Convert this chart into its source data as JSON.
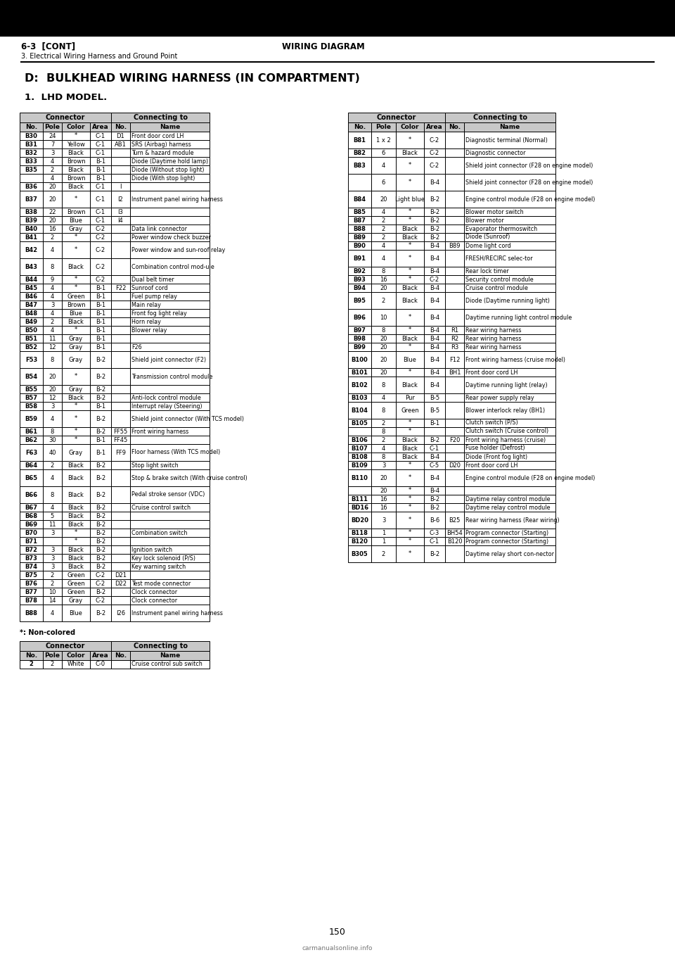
{
  "page_header_left": "6-3  [CONT]",
  "page_header_center": "WIRING DIAGRAM",
  "page_header_sub": "3. Electrical Wiring Harness and Ground Point",
  "section_title": "D:  BULKHEAD WIRING HARNESS (IN COMPARTMENT)",
  "subsection_title": "1.  LHD MODEL.",
  "page_number": "150",
  "watermark": "carmanualsonline.info",
  "left_col_headers": [
    "No.",
    "Pole",
    "Color",
    "Area",
    "No.",
    "Name"
  ],
  "left_rows": [
    [
      "B30",
      "24",
      "*",
      "C-1",
      "D1",
      "Front door cord LH",
      1
    ],
    [
      "B31",
      "7",
      "Yellow",
      "C-1",
      "AB1",
      "SRS (Airbag) harness",
      1
    ],
    [
      "B32",
      "3",
      "Black",
      "C-1",
      "",
      "Turn & hazard module",
      1
    ],
    [
      "B33",
      "4",
      "Brown",
      "B-1",
      "",
      "Diode (Daytime hold lamp)",
      1
    ],
    [
      "B35",
      "2",
      "Black",
      "B-1",
      "",
      "Diode (Without stop light)",
      1
    ],
    [
      "",
      "4",
      "Brown",
      "B-1",
      "",
      "Diode (With stop light)",
      1
    ],
    [
      "B36",
      "20",
      "Black",
      "C-1",
      "I",
      "",
      1
    ],
    [
      "B37",
      "20",
      "*",
      "C-1",
      "I2",
      "Instrument panel wiring harness",
      2
    ],
    [
      "B38",
      "22",
      "Brown",
      "C-1",
      "I3",
      "",
      1
    ],
    [
      "B39",
      "20",
      "Blue",
      "C-1",
      "I4",
      "",
      1
    ],
    [
      "B40",
      "16",
      "Gray",
      "C-2",
      "",
      "Data link connector",
      1
    ],
    [
      "B41",
      "2",
      "*",
      "C-2",
      "",
      "Power window check buzzer",
      1
    ],
    [
      "B42",
      "4",
      "*",
      "C-2",
      "",
      "Power window and sun-roof relay",
      2
    ],
    [
      "B43",
      "8",
      "Black",
      "C-2",
      "",
      "Combination control mod-ule",
      2
    ],
    [
      "B44",
      "9",
      "*",
      "C-2",
      "",
      "Dual belt timer",
      1
    ],
    [
      "B45",
      "4",
      "*",
      "B-1",
      "F22",
      "Sunroof cord",
      1
    ],
    [
      "B46",
      "4",
      "Green",
      "B-1",
      "",
      "Fuel pump relay",
      1
    ],
    [
      "B47",
      "3",
      "Brown",
      "B-1",
      "",
      "Main relay",
      1
    ],
    [
      "B48",
      "4",
      "Blue",
      "B-1",
      "",
      "Front fog light relay",
      1
    ],
    [
      "B49",
      "2",
      "Black",
      "B-1",
      "",
      "Horn relay",
      1
    ],
    [
      "B50",
      "4",
      "*",
      "B-1",
      "",
      "Blower relay",
      1
    ],
    [
      "B51",
      "11",
      "Gray",
      "B-1",
      "",
      "",
      1
    ],
    [
      "B52",
      "12",
      "Gray",
      "B-1",
      "",
      "F26",
      1
    ],
    [
      "F53",
      "8",
      "Gray",
      "B-2",
      "",
      "Shield joint connector (F2)",
      2
    ],
    [
      "B54",
      "20",
      "*",
      "B-2",
      "",
      "Transmission control module",
      2
    ],
    [
      "B55",
      "20",
      "Gray",
      "B-2",
      "",
      "",
      1
    ],
    [
      "B57",
      "12",
      "Black",
      "B-2",
      "",
      "Anti-lock control module",
      1
    ],
    [
      "B58",
      "3",
      "*",
      "B-1",
      "",
      "Interrupt relay (Steering)",
      1
    ],
    [
      "B59",
      "4",
      "*",
      "B-2",
      "",
      "Shield joint connector (With TCS model)",
      2
    ],
    [
      "B61",
      "8",
      "*",
      "B-2",
      "FF55",
      "Front wiring harness",
      1
    ],
    [
      "B62",
      "30",
      "*",
      "B-1",
      "FF45",
      "",
      1
    ],
    [
      "F63",
      "40",
      "Gray",
      "B-1",
      "FF9",
      "Floor harness (With TCS model)",
      2
    ],
    [
      "B64",
      "2",
      "Black",
      "B-2",
      "",
      "Stop light switch",
      1
    ],
    [
      "B65",
      "4",
      "Black",
      "B-2",
      "",
      "Stop & brake switch (With cruise control)",
      2
    ],
    [
      "B66",
      "8",
      "Black",
      "B-2",
      "",
      "Pedal stroke sensor (VDC)",
      2
    ],
    [
      "B67",
      "4",
      "Black",
      "B-2",
      "",
      "Cruise control switch",
      1
    ],
    [
      "B68",
      "5",
      "Black",
      "B-2",
      "",
      "",
      1
    ],
    [
      "B69",
      "11",
      "Black",
      "B-2",
      "",
      "",
      1
    ],
    [
      "B70",
      "3",
      "*",
      "B-2",
      "",
      "Combination switch",
      1
    ],
    [
      "B71",
      "",
      "*",
      "B-2",
      "",
      "",
      1
    ],
    [
      "B72",
      "3",
      "Black",
      "B-2",
      "",
      "Ignition switch",
      1
    ],
    [
      "B73",
      "3",
      "Black",
      "B-2",
      "",
      "Key lock solenoid (P/S)",
      1
    ],
    [
      "B74",
      "3",
      "Black",
      "B-2",
      "",
      "Key warning switch",
      1
    ],
    [
      "B75",
      "2",
      "Green",
      "C-2",
      "D21",
      "",
      1
    ],
    [
      "B76",
      "2",
      "Green",
      "C-2",
      "D22",
      "Test mode connector",
      1
    ],
    [
      "B77",
      "10",
      "Green",
      "B-2",
      "",
      "Clock connector",
      1
    ],
    [
      "B78",
      "14",
      "Gray",
      "C-2",
      "",
      "Clock connector",
      1
    ],
    [
      "B88",
      "4",
      "Blue",
      "B-2",
      "I26",
      "Instrument panel wiring harness",
      2
    ]
  ],
  "right_col_headers": [
    "No.",
    "Pole",
    "Color",
    "Area",
    "No.",
    "Name"
  ],
  "right_rows": [
    [
      "B81",
      "1 x 2",
      "*",
      "C-2",
      "",
      "Diagnostic terminal (Normal)",
      2
    ],
    [
      "B82",
      "6",
      "Black",
      "C-2",
      "",
      "Diagnostic connector",
      1
    ],
    [
      "B83",
      "4",
      "*",
      "C-2",
      "",
      "Shield joint connector (F28 on engine model)",
      2
    ],
    [
      "",
      "6",
      "*",
      "B-4",
      "",
      "Shield joint connector (F28 on engine model)",
      2
    ],
    [
      "B84",
      "20",
      "Light blue",
      "B-2",
      "",
      "Engine control module (F28 on engine model)",
      2
    ],
    [
      "B85",
      "4",
      "*",
      "B-2",
      "",
      "Blower motor switch",
      1
    ],
    [
      "B87",
      "2",
      "*",
      "B-2",
      "",
      "Blower motor",
      1
    ],
    [
      "B88",
      "2",
      "Black",
      "B-2",
      "",
      "Evaporator thermoswitch",
      1
    ],
    [
      "B89",
      "2",
      "Black",
      "B-2",
      "",
      "Diode (Sunroof)",
      1
    ],
    [
      "B90",
      "4",
      "*",
      "B-4",
      "B89",
      "Dome light cord",
      1
    ],
    [
      "B91",
      "4",
      "*",
      "B-4",
      "",
      "FRESH/RECIRC selec-tor",
      2
    ],
    [
      "B92",
      "8",
      "*",
      "B-4",
      "",
      "Rear lock timer",
      1
    ],
    [
      "B93",
      "16",
      "*",
      "C-2",
      "",
      "Security control module",
      1
    ],
    [
      "B94",
      "20",
      "Black",
      "B-4",
      "",
      "Cruise control module",
      1
    ],
    [
      "B95",
      "2",
      "Black",
      "B-4",
      "",
      "Diode (Daytime running light)",
      2
    ],
    [
      "B96",
      "10",
      "*",
      "B-4",
      "",
      "Daytime running light control module",
      2
    ],
    [
      "B97",
      "8",
      "*",
      "B-4",
      "R1",
      "Rear wiring harness",
      1
    ],
    [
      "B98",
      "20",
      "Black",
      "B-4",
      "R2",
      "Rear wiring harness",
      1
    ],
    [
      "B99",
      "20",
      "*",
      "B-4",
      "R3",
      "Rear wiring harness",
      1
    ],
    [
      "B100",
      "20",
      "Blue",
      "B-4",
      "F12",
      "Front wiring harness (cruise model)",
      2
    ],
    [
      "B101",
      "20",
      "*",
      "B-4",
      "BH1",
      "Front door cord LH",
      1
    ],
    [
      "B102",
      "8",
      "Black",
      "B-4",
      "",
      "Daytime running light (relay)",
      2
    ],
    [
      "B103",
      "4",
      "Pur",
      "B-5",
      "",
      "Rear power supply relay",
      1
    ],
    [
      "B104",
      "8",
      "Green",
      "B-5",
      "",
      "Blower interlock relay (BH1)",
      2
    ],
    [
      "B105",
      "2",
      "*",
      "B-1",
      "",
      "Clutch switch (P/S)",
      1
    ],
    [
      "",
      "8",
      "*",
      "",
      "",
      "Clutch switch (Cruise control)",
      1
    ],
    [
      "B106",
      "2",
      "Black",
      "B-2",
      "F20",
      "Front wiring harness (cruise)",
      1
    ],
    [
      "B107",
      "4",
      "Black",
      "C-1",
      "",
      "Fuse holder (Defrost)",
      1
    ],
    [
      "B108",
      "8",
      "Black",
      "B-4",
      "",
      "Diode (Front fog light)",
      1
    ],
    [
      "B109",
      "3",
      "*",
      "C-5",
      "D20",
      "Front door cord LH",
      1
    ],
    [
      "B110",
      "20",
      "*",
      "B-4",
      "",
      "Engine control module (F28 on engine model)",
      2
    ],
    [
      "",
      "20",
      "*",
      "B-4",
      "",
      "",
      1
    ],
    [
      "B111",
      "16",
      "*",
      "B-2",
      "",
      "Daytime relay control module",
      1
    ],
    [
      "BD16",
      "16",
      "*",
      "B-2",
      "",
      "Daytime relay control module",
      1
    ],
    [
      "BD20",
      "3",
      "*",
      "B-6",
      "B25",
      "Rear wiring harness (Rear wiring)",
      2
    ],
    [
      "B118",
      "1",
      "*",
      "C-3",
      "BH54",
      "Program connector (Starting)",
      1
    ],
    [
      "B120",
      "1",
      "*",
      "C-1",
      "B120",
      "Program connector (Starting)",
      1
    ],
    [
      "B305",
      "2",
      "*",
      "B-2",
      "",
      "Daytime relay short con-nector",
      2
    ]
  ],
  "bottom_note": "*: Non-colored",
  "bottom_col_headers": [
    "No.",
    "Pole",
    "Color",
    "Area",
    "No.",
    "Name"
  ],
  "bottom_rows": [
    [
      "2",
      "2",
      "White",
      "C-0",
      "",
      "Cruise control sub switch"
    ]
  ],
  "bg_color": "#ffffff",
  "header_bg": "#c8c8c8",
  "border_color": "#000000",
  "text_color": "#000000"
}
